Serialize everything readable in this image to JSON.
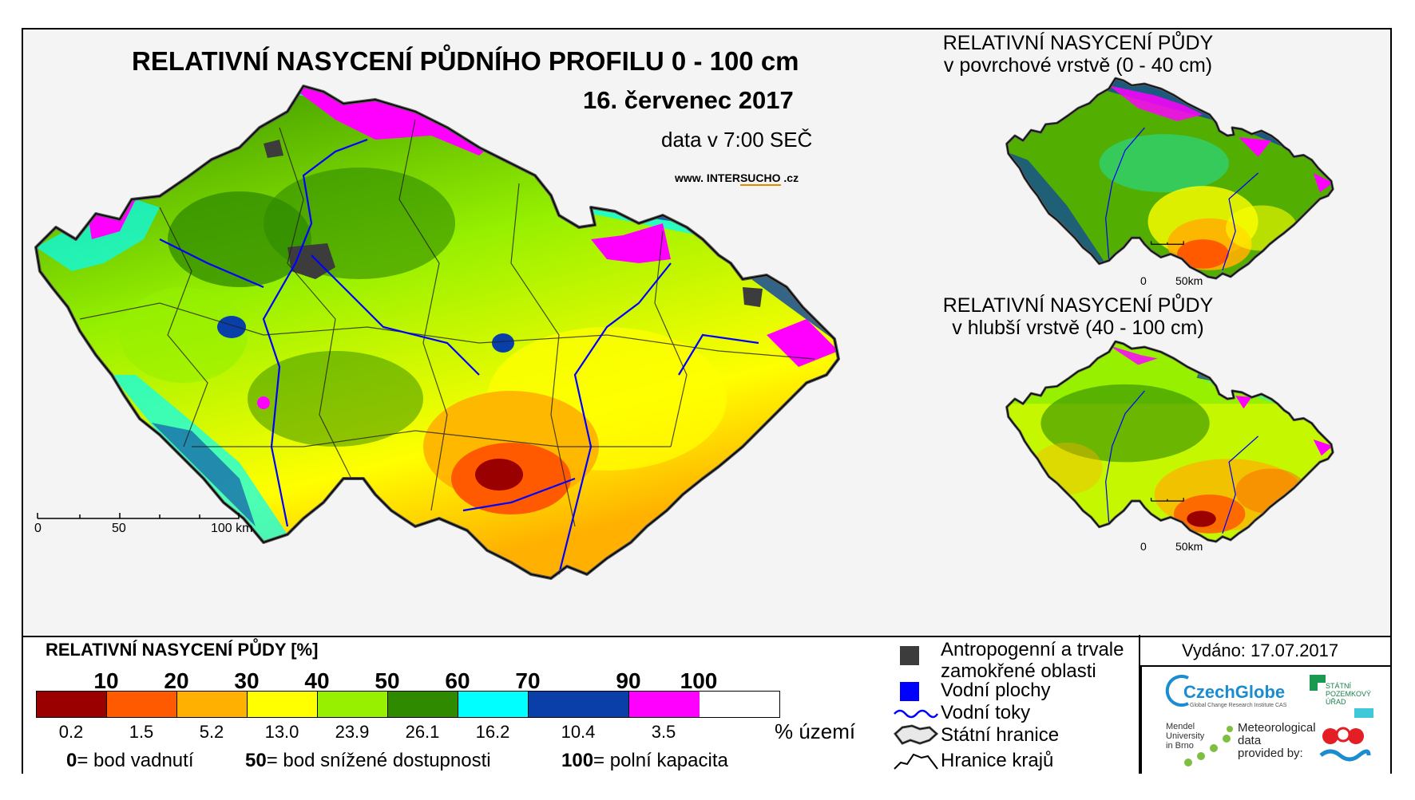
{
  "header": {
    "title": "RELATIVNÍ NASYCENÍ PŮDNÍHO PROFILU 0 - 100 cm",
    "date": "16. červenec 2017",
    "data_time": "data v 7:00 SEČ",
    "website_prefix": "www. INTER",
    "website_highlight": "SUCHO",
    "website_suffix": " .cz"
  },
  "main_map": {
    "scale_labels": [
      "0",
      "50",
      "100 km"
    ]
  },
  "inset_surface": {
    "title_line1": "RELATIVNÍ NASYCENÍ PŮDY",
    "title_line2": "v povrchové vrstvě (0 - 40 cm)",
    "scale_labels": [
      "0",
      "50km"
    ]
  },
  "inset_deep": {
    "title_line1": "RELATIVNÍ NASYCENÍ PŮDY",
    "title_line2": "v hlubší vrstvě (40 - 100 cm)",
    "scale_labels": [
      "0",
      "50km"
    ]
  },
  "legend": {
    "title": "RELATIVNÍ NASYCENÍ PŮDY [%]",
    "thresholds": [
      "10",
      "20",
      "30",
      "40",
      "50",
      "60",
      "70",
      "90",
      "100"
    ],
    "classes": [
      {
        "color": "#9b0000",
        "share": "0.2"
      },
      {
        "color": "#ff5a00",
        "share": "1.5"
      },
      {
        "color": "#ffb000",
        "share": "5.2"
      },
      {
        "color": "#ffff00",
        "share": "13.0"
      },
      {
        "color": "#96f000",
        "share": "23.9"
      },
      {
        "color": "#2f8a00",
        "share": "26.1"
      },
      {
        "color": "#00ffff",
        "share": "16.2"
      },
      {
        "color": "#0a3ea8",
        "share": "10.4"
      },
      {
        "color": "#ff00ff",
        "share": "3.5"
      }
    ],
    "share_unit": "% území",
    "notes": [
      {
        "value": "0",
        "text": "= bod vadnutí"
      },
      {
        "value": "50",
        "text": "= bod snížené dostupnosti"
      },
      {
        "value": "100",
        "text": "= polní kapacita"
      }
    ],
    "symbols": [
      {
        "label_line1": "Antropogenní a trvale",
        "label_line2": "zamokřené oblasti",
        "color": "#3c3c3c"
      },
      {
        "label": "Vodní plochy",
        "color": "#0000ff"
      },
      {
        "label": "Vodní toky",
        "color": "#0000ff"
      },
      {
        "label": "Státní hranice"
      },
      {
        "label": "Hranice krajů"
      }
    ],
    "issued": "Vydáno: 17.07.2017"
  },
  "logos": {
    "czechglobe": "CzechGlobe",
    "czechglobe_sub": "Global Change Research Institute CAS",
    "spu": [
      "STÁTNÍ",
      "POZEMKOVÝ",
      "ÚŘAD"
    ],
    "mendel": [
      "Mendel",
      "University",
      "in Brno"
    ],
    "meteo": [
      "Meteorological",
      "data",
      "provided by:"
    ]
  }
}
